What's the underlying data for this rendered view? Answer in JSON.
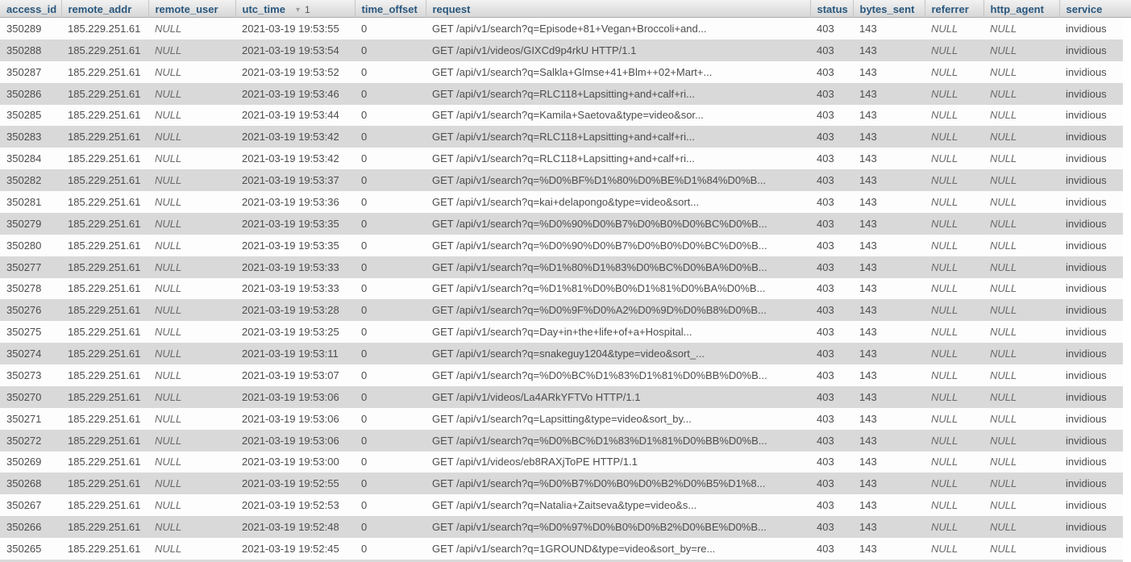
{
  "table": {
    "columns": [
      {
        "label": "access_id"
      },
      {
        "label": "remote_addr"
      },
      {
        "label": "remote_user"
      },
      {
        "label": "utc_time",
        "sort": {
          "icon": "▾",
          "order": "1"
        }
      },
      {
        "label": "time_offset"
      },
      {
        "label": "request"
      },
      {
        "label": "status"
      },
      {
        "label": "bytes_sent"
      },
      {
        "label": "referrer"
      },
      {
        "label": "http_agent"
      },
      {
        "label": "service"
      }
    ],
    "rows": [
      [
        "350289",
        "185.229.251.61",
        "NULL",
        "2021-03-19 19:53:55",
        "0",
        "GET /api/v1/search?q=Episode+81+Vegan+Broccoli+and...",
        "403",
        "143",
        "NULL",
        "NULL",
        "invidious"
      ],
      [
        "350288",
        "185.229.251.61",
        "NULL",
        "2021-03-19 19:53:54",
        "0",
        "GET /api/v1/videos/GIXCd9p4rkU HTTP/1.1",
        "403",
        "143",
        "NULL",
        "NULL",
        "invidious"
      ],
      [
        "350287",
        "185.229.251.61",
        "NULL",
        "2021-03-19 19:53:52",
        "0",
        "GET /api/v1/search?q=Salkla+Glmse+41+Blm++02+Mart+...",
        "403",
        "143",
        "NULL",
        "NULL",
        "invidious"
      ],
      [
        "350286",
        "185.229.251.61",
        "NULL",
        "2021-03-19 19:53:46",
        "0",
        "GET /api/v1/search?q=RLC118+Lapsitting+and+calf+ri...",
        "403",
        "143",
        "NULL",
        "NULL",
        "invidious"
      ],
      [
        "350285",
        "185.229.251.61",
        "NULL",
        "2021-03-19 19:53:44",
        "0",
        "GET /api/v1/search?q=Kamila+Saetova&type=video&sor...",
        "403",
        "143",
        "NULL",
        "NULL",
        "invidious"
      ],
      [
        "350283",
        "185.229.251.61",
        "NULL",
        "2021-03-19 19:53:42",
        "0",
        "GET /api/v1/search?q=RLC118+Lapsitting+and+calf+ri...",
        "403",
        "143",
        "NULL",
        "NULL",
        "invidious"
      ],
      [
        "350284",
        "185.229.251.61",
        "NULL",
        "2021-03-19 19:53:42",
        "0",
        "GET /api/v1/search?q=RLC118+Lapsitting+and+calf+ri...",
        "403",
        "143",
        "NULL",
        "NULL",
        "invidious"
      ],
      [
        "350282",
        "185.229.251.61",
        "NULL",
        "2021-03-19 19:53:37",
        "0",
        "GET /api/v1/search?q=%D0%BF%D1%80%D0%BE%D1%84%D0%B...",
        "403",
        "143",
        "NULL",
        "NULL",
        "invidious"
      ],
      [
        "350281",
        "185.229.251.61",
        "NULL",
        "2021-03-19 19:53:36",
        "0",
        "GET /api/v1/search?q=kai+delapongo&type=video&sort...",
        "403",
        "143",
        "NULL",
        "NULL",
        "invidious"
      ],
      [
        "350279",
        "185.229.251.61",
        "NULL",
        "2021-03-19 19:53:35",
        "0",
        "GET /api/v1/search?q=%D0%90%D0%B7%D0%B0%D0%BC%D0%B...",
        "403",
        "143",
        "NULL",
        "NULL",
        "invidious"
      ],
      [
        "350280",
        "185.229.251.61",
        "NULL",
        "2021-03-19 19:53:35",
        "0",
        "GET /api/v1/search?q=%D0%90%D0%B7%D0%B0%D0%BC%D0%B...",
        "403",
        "143",
        "NULL",
        "NULL",
        "invidious"
      ],
      [
        "350277",
        "185.229.251.61",
        "NULL",
        "2021-03-19 19:53:33",
        "0",
        "GET /api/v1/search?q=%D1%80%D1%83%D0%BC%D0%BA%D0%B...",
        "403",
        "143",
        "NULL",
        "NULL",
        "invidious"
      ],
      [
        "350278",
        "185.229.251.61",
        "NULL",
        "2021-03-19 19:53:33",
        "0",
        "GET /api/v1/search?q=%D1%81%D0%B0%D1%81%D0%BA%D0%B...",
        "403",
        "143",
        "NULL",
        "NULL",
        "invidious"
      ],
      [
        "350276",
        "185.229.251.61",
        "NULL",
        "2021-03-19 19:53:28",
        "0",
        "GET /api/v1/search?q=%D0%9F%D0%A2%D0%9D%D0%B8%D0%B...",
        "403",
        "143",
        "NULL",
        "NULL",
        "invidious"
      ],
      [
        "350275",
        "185.229.251.61",
        "NULL",
        "2021-03-19 19:53:25",
        "0",
        "GET /api/v1/search?q=Day+in+the+life+of+a+Hospital...",
        "403",
        "143",
        "NULL",
        "NULL",
        "invidious"
      ],
      [
        "350274",
        "185.229.251.61",
        "NULL",
        "2021-03-19 19:53:11",
        "0",
        "GET /api/v1/search?q=snakeguy1204&type=video&sort_...",
        "403",
        "143",
        "NULL",
        "NULL",
        "invidious"
      ],
      [
        "350273",
        "185.229.251.61",
        "NULL",
        "2021-03-19 19:53:07",
        "0",
        "GET /api/v1/search?q=%D0%BC%D1%83%D1%81%D0%BB%D0%B...",
        "403",
        "143",
        "NULL",
        "NULL",
        "invidious"
      ],
      [
        "350270",
        "185.229.251.61",
        "NULL",
        "2021-03-19 19:53:06",
        "0",
        "GET /api/v1/videos/La4ARkYFTVo HTTP/1.1",
        "403",
        "143",
        "NULL",
        "NULL",
        "invidious"
      ],
      [
        "350271",
        "185.229.251.61",
        "NULL",
        "2021-03-19 19:53:06",
        "0",
        "GET /api/v1/search?q=Lapsitting&type=video&sort_by...",
        "403",
        "143",
        "NULL",
        "NULL",
        "invidious"
      ],
      [
        "350272",
        "185.229.251.61",
        "NULL",
        "2021-03-19 19:53:06",
        "0",
        "GET /api/v1/search?q=%D0%BC%D1%83%D1%81%D0%BB%D0%B...",
        "403",
        "143",
        "NULL",
        "NULL",
        "invidious"
      ],
      [
        "350269",
        "185.229.251.61",
        "NULL",
        "2021-03-19 19:53:00",
        "0",
        "GET /api/v1/videos/eb8RAXjToPE HTTP/1.1",
        "403",
        "143",
        "NULL",
        "NULL",
        "invidious"
      ],
      [
        "350268",
        "185.229.251.61",
        "NULL",
        "2021-03-19 19:52:55",
        "0",
        "GET /api/v1/search?q=%D0%B7%D0%B0%D0%B2%D0%B5%D1%8...",
        "403",
        "143",
        "NULL",
        "NULL",
        "invidious"
      ],
      [
        "350267",
        "185.229.251.61",
        "NULL",
        "2021-03-19 19:52:53",
        "0",
        "GET /api/v1/search?q=Natalia+Zaitseva&type=video&s...",
        "403",
        "143",
        "NULL",
        "NULL",
        "invidious"
      ],
      [
        "350266",
        "185.229.251.61",
        "NULL",
        "2021-03-19 19:52:48",
        "0",
        "GET /api/v1/search?q=%D0%97%D0%B0%D0%B2%D0%BE%D0%B...",
        "403",
        "143",
        "NULL",
        "NULL",
        "invidious"
      ],
      [
        "350265",
        "185.229.251.61",
        "NULL",
        "2021-03-19 19:52:45",
        "0",
        "GET /api/v1/search?q=1GROUND&type=video&sort_by=re...",
        "403",
        "143",
        "NULL",
        "NULL",
        "invidious"
      ]
    ]
  },
  "colors": {
    "header_text": "#29577d",
    "header_bg_top": "#f2f2f2",
    "header_bg_bottom": "#d7d7d7",
    "row_odd_bg": "#fdfdfd",
    "row_even_bg": "#d9d9d9",
    "cell_text": "#4d4d4d",
    "null_text": "#6b6b6b"
  }
}
